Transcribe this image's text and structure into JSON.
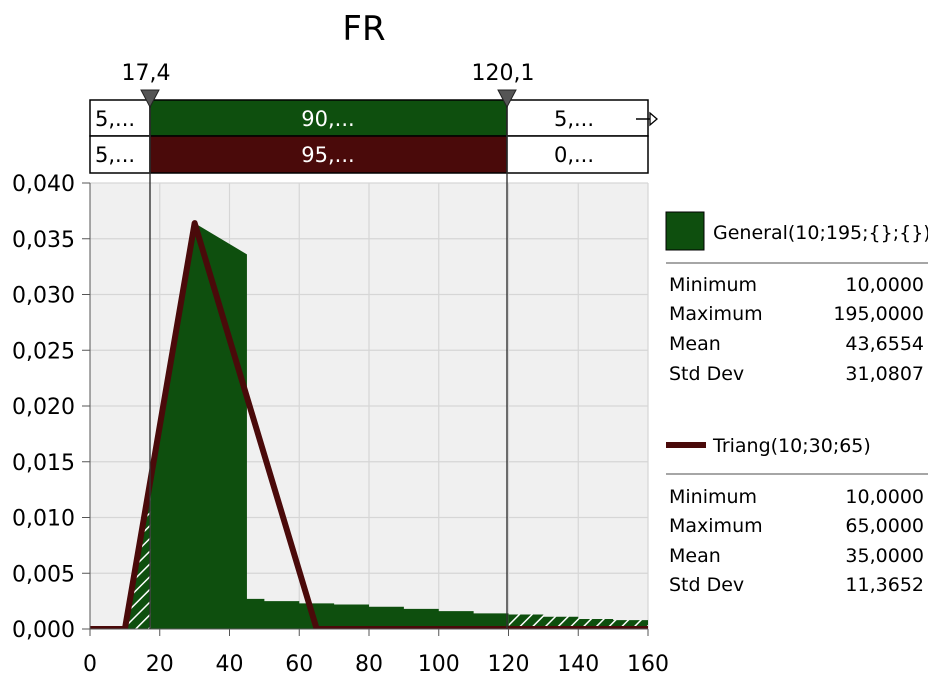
{
  "chart_data": {
    "type": "area",
    "title": "FR",
    "xlim": [
      0,
      160
    ],
    "ylim": [
      0,
      0.04
    ],
    "x_ticks": [
      "0",
      "20",
      "40",
      "60",
      "80",
      "100",
      "120",
      "140",
      "160"
    ],
    "y_ticks": [
      "0,000",
      "0,005",
      "0,010",
      "0,015",
      "0,020",
      "0,025",
      "0,030",
      "0,035",
      "0,040"
    ],
    "x_tick_values": [
      0,
      20,
      40,
      60,
      80,
      100,
      120,
      140,
      160
    ],
    "y_tick_values": [
      0,
      0.005,
      0.01,
      0.015,
      0.02,
      0.025,
      0.03,
      0.035,
      0.04
    ],
    "grid": true,
    "legend_position": "right",
    "delimiters": {
      "left": {
        "value": 17.4,
        "label": "17,4"
      },
      "right": {
        "value": 120.1,
        "label": "120,1"
      }
    },
    "probability_bars": [
      {
        "series": "General",
        "left": "5,...",
        "middle": "90,...",
        "right": "5,...",
        "color": "#0e4f0e"
      },
      {
        "series": "Triang",
        "left": "5,...",
        "middle": "95,...",
        "right": "0,...",
        "color": "#4a0a0a"
      }
    ],
    "series": [
      {
        "name": "General(10;195;{};{})",
        "kind": "area",
        "color": "#0e4f0e",
        "points": [
          [
            10,
            0
          ],
          [
            30,
            0.0364
          ],
          [
            45,
            0.0336
          ],
          [
            45,
            0.0027
          ],
          [
            50,
            0.0027
          ],
          [
            50,
            0.0025
          ],
          [
            60,
            0.0025
          ],
          [
            60,
            0.0023
          ],
          [
            70,
            0.0023
          ],
          [
            70,
            0.0022
          ],
          [
            80,
            0.0022
          ],
          [
            80,
            0.002
          ],
          [
            90,
            0.002
          ],
          [
            90,
            0.0018
          ],
          [
            100,
            0.0018
          ],
          [
            100,
            0.0016
          ],
          [
            110,
            0.0016
          ],
          [
            110,
            0.0014
          ],
          [
            120,
            0.0014
          ],
          [
            120,
            0.0013
          ],
          [
            130,
            0.0013
          ],
          [
            130,
            0.0011
          ],
          [
            140,
            0.0011
          ],
          [
            140,
            0.0009
          ],
          [
            150,
            0.0009
          ],
          [
            150,
            0.0008
          ],
          [
            160,
            0.0008
          ],
          [
            160,
            0
          ]
        ],
        "stats": [
          {
            "label": "Minimum",
            "value": "10,0000"
          },
          {
            "label": "Maximum",
            "value": "195,0000"
          },
          {
            "label": "Mean",
            "value": "43,6554"
          },
          {
            "label": "Std Dev",
            "value": "31,0807"
          }
        ]
      },
      {
        "name": "Triang(10;30;65)",
        "kind": "line",
        "color": "#4a0a0a",
        "points": [
          [
            0,
            0
          ],
          [
            10,
            0
          ],
          [
            30,
            0.0364
          ],
          [
            65,
            0
          ],
          [
            160,
            0
          ]
        ],
        "stats": [
          {
            "label": "Minimum",
            "value": "10,0000"
          },
          {
            "label": "Maximum",
            "value": "65,0000"
          },
          {
            "label": "Mean",
            "value": "35,0000"
          },
          {
            "label": "Std Dev",
            "value": "11,3652"
          }
        ]
      }
    ]
  }
}
